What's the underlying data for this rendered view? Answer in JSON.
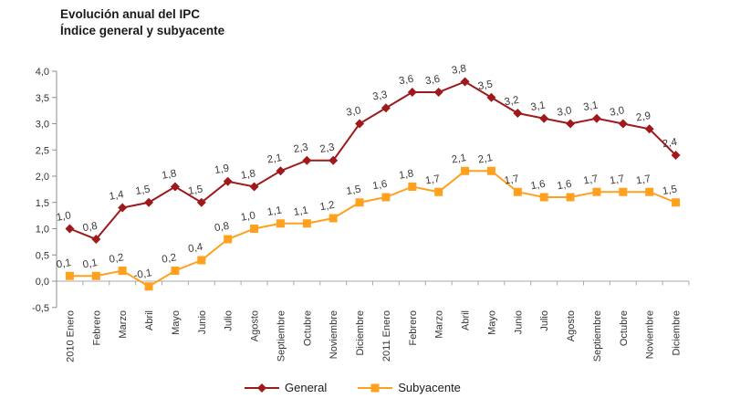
{
  "header": {
    "title_line1": "Evolución anual del IPC",
    "title_line2": "Índice general y subyacente"
  },
  "chart_data": {
    "type": "line",
    "title": "Evolución anual del IPC",
    "subtitle": "Índice general y subyacente",
    "categories": [
      "2010 Enero",
      "Febrero",
      "Marzo",
      "Abril",
      "Mayo",
      "Junio",
      "Julio",
      "Agosto",
      "Septiembre",
      "Octubre",
      "Noviembre",
      "Diciembre",
      "2011 Enero",
      "Febrero",
      "Marzo",
      "Abril",
      "Mayo",
      "Junio",
      "Julio",
      "Agosto",
      "Septiembre",
      "Octubre",
      "Noviembre",
      "Diciembre"
    ],
    "series": [
      {
        "name": "General",
        "marker": "diamond",
        "color": "#9E191C",
        "values": [
          1.0,
          0.8,
          1.4,
          1.5,
          1.8,
          1.5,
          1.9,
          1.8,
          2.1,
          2.3,
          2.3,
          3.0,
          3.3,
          3.6,
          3.6,
          3.8,
          3.5,
          3.2,
          3.1,
          3.0,
          3.1,
          3.0,
          2.9,
          2.4
        ]
      },
      {
        "name": "Subyacente",
        "marker": "square",
        "color": "#FFA01E",
        "values": [
          0.1,
          0.1,
          0.2,
          -0.1,
          0.2,
          0.4,
          0.8,
          1.0,
          1.1,
          1.1,
          1.2,
          1.5,
          1.6,
          1.8,
          1.7,
          2.1,
          2.1,
          1.7,
          1.6,
          1.6,
          1.7,
          1.7,
          1.7,
          1.5
        ]
      }
    ],
    "ylim": [
      -0.5,
      4.0
    ],
    "ytick_step": 0.5,
    "ytick_labels": [
      "-0,5",
      "0,0",
      "0,5",
      "1,0",
      "1,5",
      "2,0",
      "2,5",
      "3,0",
      "3,5",
      "4,0"
    ],
    "decimal_separator": ",",
    "data_labels": "above each point",
    "grid": false,
    "zero_line": true,
    "legend_position": "bottom",
    "xlabel": "",
    "ylabel": ""
  },
  "colors": {
    "background": "#ffffff",
    "general_series": "#9E191C",
    "subyacente_series": "#FFA01E",
    "axis_line": "#8F8F8F",
    "zero_line": "#A9A9A9",
    "data_label_text": "#3A3A3A",
    "axis_text": "#333333",
    "title_text": "#1A1A1A"
  }
}
